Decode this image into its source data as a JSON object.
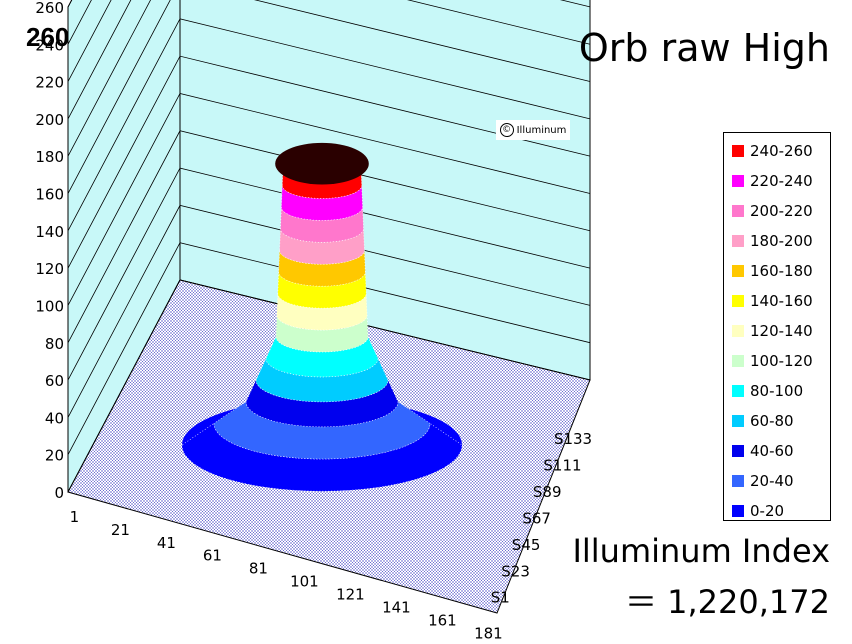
{
  "header": {
    "corner_value": "260",
    "title": "Orb raw High"
  },
  "index": {
    "label": "Illuminum Index",
    "value": "＝ 1,220,172"
  },
  "watermark": {
    "symbol": "©",
    "text": "Illuminum"
  },
  "chart_data": {
    "type": "surface3d",
    "title": "Orb raw High",
    "z_axis": {
      "ticks": [
        "0",
        "20",
        "40",
        "60",
        "80",
        "100",
        "120",
        "140",
        "160",
        "180",
        "200",
        "220",
        "240",
        "260"
      ],
      "range": [
        0,
        260
      ]
    },
    "x_axis": {
      "ticks": [
        "1",
        "21",
        "41",
        "61",
        "81",
        "101",
        "121",
        "141",
        "161",
        "181"
      ]
    },
    "y_axis": {
      "ticks": [
        "S1",
        "S23",
        "S45",
        "S67",
        "S89",
        "S111",
        "S133"
      ]
    },
    "peak_value": 260,
    "legend": {
      "placement": "right",
      "bands": [
        {
          "label": "240-260",
          "color": "#ff0000"
        },
        {
          "label": "220-240",
          "color": "#ff00ff"
        },
        {
          "label": "200-220",
          "color": "#ff77cc"
        },
        {
          "label": "180-200",
          "color": "#ff9fc8"
        },
        {
          "label": "160-180",
          "color": "#ffc800"
        },
        {
          "label": "140-160",
          "color": "#ffff00"
        },
        {
          "label": "120-140",
          "color": "#ffffc0"
        },
        {
          "label": "100-120",
          "color": "#ccffcc"
        },
        {
          "label": "80-100",
          "color": "#00ffff"
        },
        {
          "label": "60-80",
          "color": "#00ccff"
        },
        {
          "label": "40-60",
          "color": "#0000ee"
        },
        {
          "label": "20-40",
          "color": "#3366ff"
        },
        {
          "label": "0-20",
          "color": "#0000ff"
        }
      ]
    }
  }
}
